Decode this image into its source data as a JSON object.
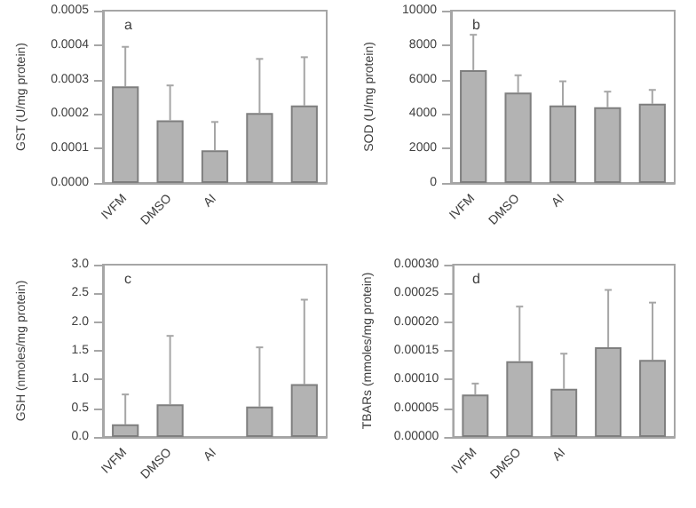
{
  "chart_data": [
    {
      "type": "bar",
      "ylabel": "GST (U/mg protein)",
      "annotations": [
        "a"
      ],
      "categories": [
        "IVFM",
        "DMSO",
        "AI",
        null,
        null
      ],
      "values": [
        0.00028,
        0.000182,
        9.5e-05,
        0.000203,
        0.000225
      ],
      "color": "#b3b3b3",
      "errors": [
        [
          0.00028,
          0.000395
        ],
        [
          0.000182,
          0.000283
        ],
        [
          9.5e-05,
          0.000177
        ],
        [
          0.000203,
          0.00036
        ],
        [
          0.000225,
          0.000365
        ]
      ],
      "ylim": [
        0,
        0.0005
      ],
      "yticks": [
        {
          "value": 0,
          "label": "0.0000"
        },
        {
          "value": 0.0001,
          "label": "0.0001"
        },
        {
          "value": 0.0002,
          "label": "0.0002"
        },
        {
          "value": 0.0003,
          "label": "0.0003"
        },
        {
          "value": 0.0004,
          "label": "0.0004"
        },
        {
          "value": 0.0005,
          "label": "0.0005"
        }
      ],
      "grid": false
    },
    {
      "type": "bar",
      "ylabel": "SOD (U/mg protein)",
      "annotations": [
        "b"
      ],
      "categories": [
        "IVFM",
        "DMSO",
        "AI",
        null,
        null
      ],
      "values": [
        6550,
        5250,
        4500,
        4400,
        4600
      ],
      "color": "#b3b3b3",
      "errors": [
        [
          6550,
          8600
        ],
        [
          5250,
          6250
        ],
        [
          4500,
          5900
        ],
        [
          4400,
          5300
        ],
        [
          4600,
          5400
        ]
      ],
      "ylim": [
        0,
        10000
      ],
      "yticks": [
        0,
        2000,
        4000,
        6000,
        8000,
        10000
      ],
      "grid": false
    },
    {
      "type": "bar",
      "ylabel": "GSH (nmoles/mg protein)",
      "annotations": [
        "c"
      ],
      "categories": [
        "IVFM",
        "DMSO",
        "AI",
        null,
        null
      ],
      "values": [
        0.22,
        0.57,
        null,
        0.53,
        0.92
      ],
      "color": "#b3b3b3",
      "errors": [
        [
          0.22,
          0.74
        ],
        [
          0.57,
          1.76
        ],
        null,
        [
          0.53,
          1.56
        ],
        [
          0.92,
          2.39
        ]
      ],
      "ylim": [
        0,
        3
      ],
      "yticks": [
        {
          "value": 0,
          "label": "0.0"
        },
        {
          "value": 0.5,
          "label": "0.5"
        },
        {
          "value": 1,
          "label": "1.0"
        },
        {
          "value": 1.5,
          "label": "1.5"
        },
        {
          "value": 2,
          "label": "2.0"
        },
        {
          "value": 2.5,
          "label": "2.5"
        },
        {
          "value": 3,
          "label": "3.0"
        }
      ],
      "grid": false
    },
    {
      "type": "bar",
      "ylabel": "TBARs (mmoles/mg protein)",
      "annotations": [
        "d"
      ],
      "categories": [
        "IVFM",
        "DMSO",
        "AI",
        null,
        null
      ],
      "values": [
        7.4e-05,
        0.000132,
        8.4e-05,
        0.000156,
        0.000134
      ],
      "color": "#b3b3b3",
      "errors": [
        [
          7.4e-05,
          9.3e-05
        ],
        [
          0.000132,
          0.000227
        ],
        [
          8.4e-05,
          0.000145
        ],
        [
          0.000156,
          0.000256
        ],
        [
          0.000134,
          0.000234
        ]
      ],
      "ylim": [
        0,
        0.0003
      ],
      "yticks": [
        {
          "value": 0,
          "label": "0.00000"
        },
        {
          "value": 5e-05,
          "label": "0.00005"
        },
        {
          "value": 0.0001,
          "label": "0.00010"
        },
        {
          "value": 0.00015,
          "label": "0.00015"
        },
        {
          "value": 0.0002,
          "label": "0.00020"
        },
        {
          "value": 0.00025,
          "label": "0.00025"
        },
        {
          "value": 0.0003,
          "label": "0.00030"
        }
      ],
      "grid": false
    }
  ]
}
